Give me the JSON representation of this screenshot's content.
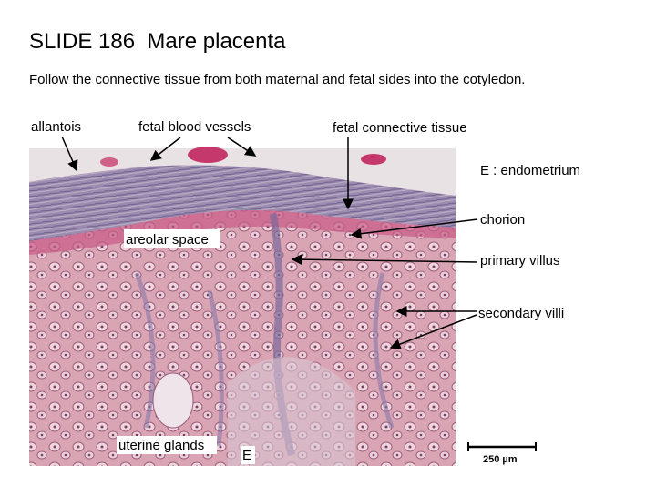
{
  "header": {
    "title": "SLIDE 186  Mare placenta",
    "subtitle": "Follow the connective tissue from both maternal and fetal sides into the cotyledon."
  },
  "labels": {
    "allantois": "allantois",
    "fetal_blood_vessels": "fetal blood vessels",
    "fetal_connective_tissue": "fetal connective tissue",
    "endometrium": "E : endometrium",
    "chorion": "chorion",
    "areolar_space": "areolar space",
    "primary_villus": "primary villus",
    "secondary_villi": "secondary villi",
    "uterine_glands": "uterine glands",
    "e_marker": "E"
  },
  "scale_bar": {
    "label": "250 µm"
  }
}
